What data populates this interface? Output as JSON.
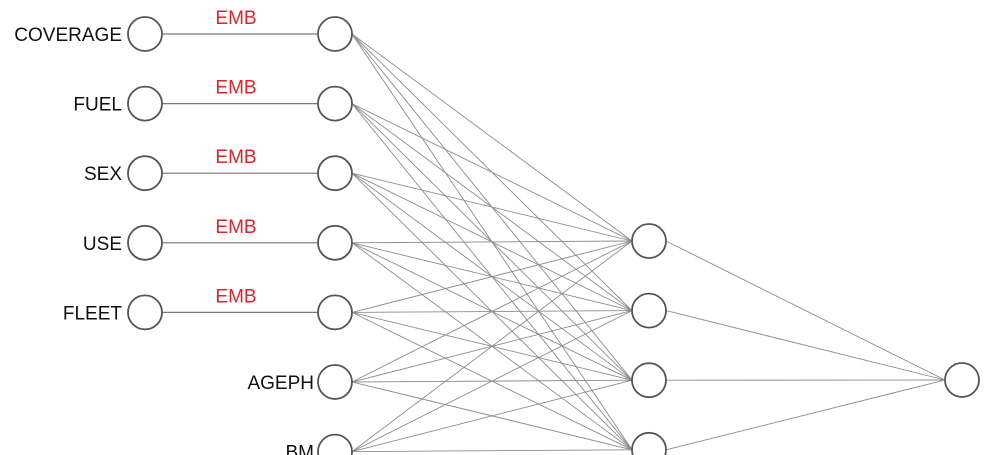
{
  "categorical_inputs": [
    {
      "label": "COVERAGE",
      "edge_label": "EMB"
    },
    {
      "label": "FUEL",
      "edge_label": "EMB"
    },
    {
      "label": "SEX",
      "edge_label": "EMB"
    },
    {
      "label": "USE",
      "edge_label": "EMB"
    },
    {
      "label": "FLEET",
      "edge_label": "EMB"
    }
  ],
  "continuous_inputs": [
    {
      "label": "AGEPH"
    },
    {
      "label": "BM"
    }
  ],
  "colors": {
    "edge_label": "#e8202a",
    "node_stroke": "#555555",
    "edge": "#8c8c8c"
  }
}
